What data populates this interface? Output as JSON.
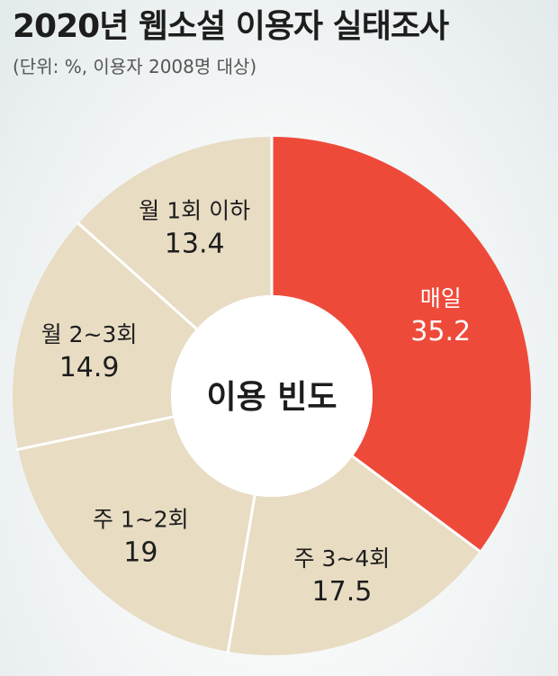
{
  "header": {
    "title": "2020년 웹소설 이용자 실태조사",
    "subtitle": "(단위: %, 이용자 2008명 대상)"
  },
  "chart_data": {
    "type": "pie",
    "variant": "donut",
    "title": "2020년 웹소설 이용자 실태조사",
    "subtitle": "(단위: %, 이용자 2008명 대상)",
    "center_label": "이용 빈도",
    "unit": "%",
    "start": "12 o'clock, clockwise",
    "slices": [
      {
        "label": "매일",
        "value": 35.2,
        "value_text": "35.2",
        "color": "#ee4a3a",
        "text_color": "#ffffff"
      },
      {
        "label": "주 3~4회",
        "value": 17.5,
        "value_text": "17.5",
        "color": "#e8dcc3",
        "text_color": "#1d1d1d"
      },
      {
        "label": "주 1~2회",
        "value": 19,
        "value_text": "19",
        "color": "#e8dcc3",
        "text_color": "#1d1d1d"
      },
      {
        "label": "월 2~3회",
        "value": 14.9,
        "value_text": "14.9",
        "color": "#e8dcc3",
        "text_color": "#1d1d1d"
      },
      {
        "label": "월 1회 이하",
        "value": 13.4,
        "value_text": "13.4",
        "color": "#e8dcc3",
        "text_color": "#1d1d1d"
      }
    ],
    "separator_color": "#ffffff",
    "center_color": "#ffffff",
    "center_text_color": "#1d1d1d"
  }
}
